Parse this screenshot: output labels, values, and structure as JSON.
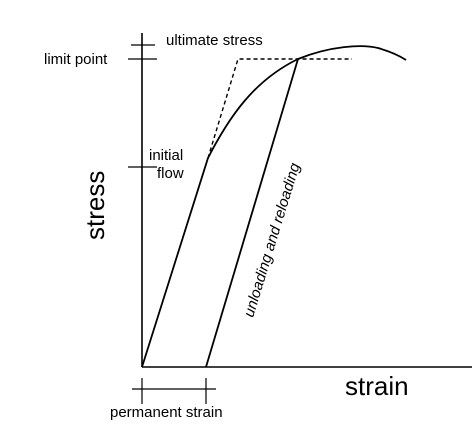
{
  "labels": {
    "ultimate_stress": "ultimate stress",
    "limit_point": "limit point",
    "initial_flow_line1": "initial",
    "initial_flow_line2": "flow",
    "unloading_reloading": "unloading and reloading",
    "stress_axis": "stress",
    "strain_axis": "strain",
    "permanent_strain": "permanent strain"
  }
}
